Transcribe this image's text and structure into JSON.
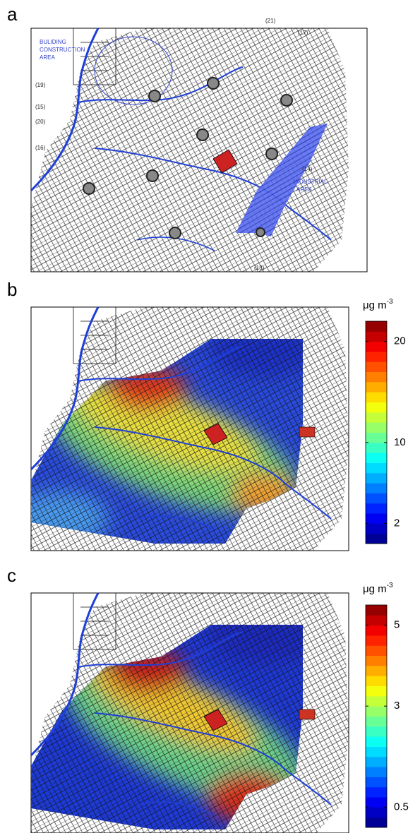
{
  "panels": [
    {
      "label": "a",
      "annotations": [
        "(21)",
        "(17)",
        "BULIDING",
        "CONSTRUCTION",
        "AREA",
        "(19)",
        "(15)",
        "(20)",
        "(16)",
        "(14)",
        "INDUSTRIAL",
        "AREA",
        "(13)"
      ]
    },
    {
      "label": "b",
      "colorbar": {
        "unit": "μg m",
        "unit_exp": "-3",
        "colormap": "jet",
        "clim": [
          0,
          22
        ],
        "ticks": [
          2,
          10,
          20
        ]
      }
    },
    {
      "label": "c",
      "colorbar": {
        "unit": "μg m",
        "unit_exp": "-3",
        "colormap": "jet",
        "clim": [
          0,
          5.5
        ],
        "ticks": [
          0.5,
          3,
          5
        ]
      }
    }
  ]
}
